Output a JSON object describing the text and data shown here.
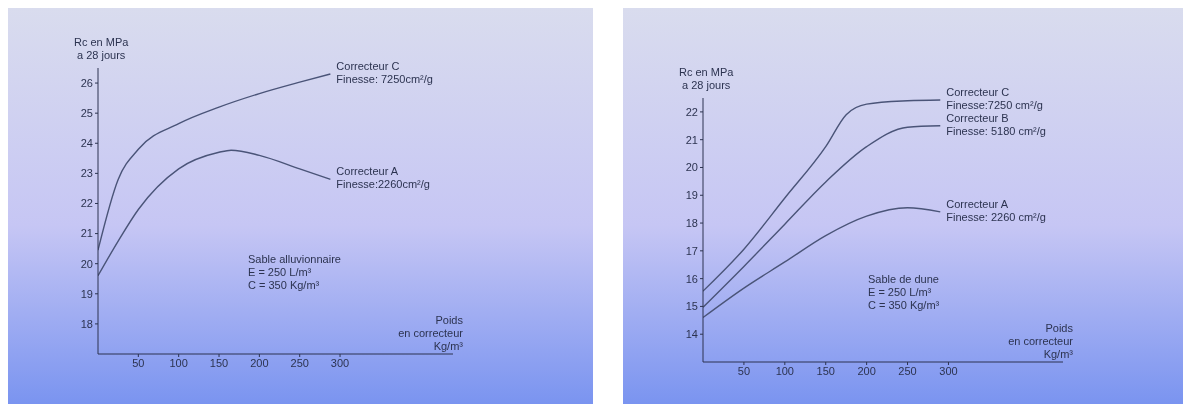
{
  "chart_data": [
    {
      "type": "line",
      "ylabel": "Rc en MPa\na 28 jours",
      "xlabel": "Poids\nen correcteur\nKg/m³",
      "xlim": [
        0,
        440
      ],
      "ylim": [
        17,
        26.5
      ],
      "xticks": [
        50,
        100,
        150,
        200,
        250,
        300
      ],
      "yticks": [
        18,
        19,
        20,
        21,
        22,
        23,
        24,
        25,
        26
      ],
      "grid": false,
      "legend": false,
      "marker": "none",
      "line_style": "solid",
      "x": [
        0,
        25,
        50,
        100,
        150,
        200,
        250,
        288
      ],
      "series": [
        {
          "name": "Correcteur C\nFinesse: 7250cm²/g",
          "color": "#4a5478",
          "values": [
            20.45,
            22.8,
            23.8,
            24.65,
            25.2,
            25.65,
            26.03,
            26.3
          ]
        },
        {
          "name": "Correcteur A\nFinesse:2260cm²/g",
          "color": "#4a5478",
          "x": [
            0,
            25,
            50,
            100,
            150,
            165,
            200,
            250,
            288
          ],
          "values": [
            19.6,
            20.75,
            21.8,
            23.15,
            23.7,
            23.77,
            23.6,
            23.15,
            22.8
          ]
        }
      ],
      "annotations": [
        "Sable alluvionnaire\nE = 250 L/m³\nC = 350 Kg/m³"
      ]
    },
    {
      "type": "line",
      "ylabel": "Rc en MPa\na 28 jours",
      "xlabel": "Poids\nen correcteur\nKg/m³",
      "xlim": [
        0,
        440
      ],
      "ylim": [
        13,
        22.5
      ],
      "xticks": [
        50,
        100,
        150,
        200,
        250,
        300
      ],
      "yticks": [
        14,
        15,
        16,
        17,
        18,
        19,
        20,
        21,
        22
      ],
      "grid": false,
      "legend": false,
      "marker": "none",
      "line_style": "solid",
      "x": [
        0,
        50,
        100,
        150,
        175,
        200,
        250,
        290
      ],
      "series": [
        {
          "name": "Correcteur C\nFinesse:7250 cm²/g",
          "color": "#4a5478",
          "values": [
            15.55,
            17.06,
            18.9,
            20.75,
            21.9,
            22.28,
            22.4,
            22.43
          ]
        },
        {
          "name": "Correcteur B\nFinesse: 5180 cm²/g",
          "color": "#4a5478",
          "x": [
            0,
            50,
            100,
            150,
            200,
            250,
            290
          ],
          "values": [
            14.97,
            16.44,
            17.96,
            19.48,
            20.75,
            21.45,
            21.5
          ]
        },
        {
          "name": "Correcteur A\nFinesse: 2260 cm²/g",
          "color": "#4a5478",
          "x": [
            0,
            50,
            100,
            150,
            200,
            250,
            290
          ],
          "values": [
            14.6,
            15.66,
            16.6,
            17.55,
            18.25,
            18.55,
            18.4
          ]
        }
      ],
      "annotations": [
        "Sable de dune\nE = 250 L/m³\nC = 350 Kg/m³"
      ]
    }
  ]
}
